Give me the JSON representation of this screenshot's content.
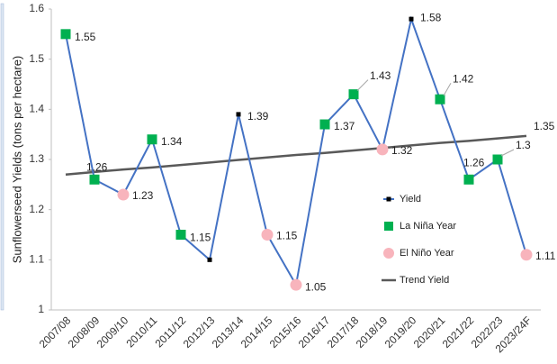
{
  "chart_data": {
    "type": "line",
    "y_label": "Sunflowerseed Yields (tons per hectare)",
    "categories": [
      "2007/08",
      "2008/09",
      "2009/10",
      "2010/11",
      "2011/12",
      "2012/13",
      "2013/14",
      "2014/15",
      "2015/16",
      "2016/17",
      "2017/18",
      "2018/19",
      "2019/20",
      "2020/21",
      "2021/22",
      "2022/23",
      "2023/24F"
    ],
    "series": [
      {
        "name": "Yield",
        "color": "#4472c4",
        "marker_color": "#000000",
        "values": [
          1.55,
          1.26,
          1.23,
          1.34,
          1.15,
          1.1,
          1.39,
          1.15,
          1.05,
          1.37,
          1.43,
          1.32,
          1.58,
          1.42,
          1.26,
          1.3,
          1.11
        ],
        "value_labels": [
          "1.55",
          "1.26",
          "1.23",
          "1.34",
          "1.15",
          null,
          "1.39",
          "1.15",
          "1.05",
          "1.37",
          "1.43",
          "1.32",
          "1.58",
          "1.42",
          "1.26",
          "1.3",
          "1.11"
        ]
      },
      {
        "name": "La Niña Year",
        "color": "#00b050",
        "marker": "square",
        "values": [
          1.55,
          1.26,
          null,
          1.34,
          1.15,
          null,
          null,
          null,
          null,
          1.37,
          1.43,
          null,
          null,
          1.42,
          1.26,
          1.3,
          null
        ]
      },
      {
        "name": "El Niño Year",
        "color": "#f8b4bc",
        "marker": "circle",
        "values": [
          null,
          null,
          1.23,
          null,
          null,
          null,
          null,
          1.15,
          1.05,
          null,
          null,
          1.32,
          null,
          null,
          null,
          null,
          1.11
        ]
      },
      {
        "name": "Trend Yield",
        "color": "#595959",
        "values": [
          1.27,
          1.275,
          1.28,
          1.284,
          1.289,
          1.294,
          1.299,
          1.304,
          1.309,
          1.313,
          1.318,
          1.323,
          1.328,
          1.333,
          1.337,
          1.342,
          1.347
        ],
        "value_labels": [
          null,
          null,
          null,
          null,
          null,
          null,
          null,
          null,
          null,
          null,
          null,
          null,
          null,
          null,
          null,
          null,
          "1.35"
        ]
      }
    ],
    "ylim": [
      1,
      1.6
    ],
    "yticks": [
      1,
      1.1,
      1.2,
      1.3,
      1.4,
      1.5,
      1.6
    ],
    "grid": false
  }
}
